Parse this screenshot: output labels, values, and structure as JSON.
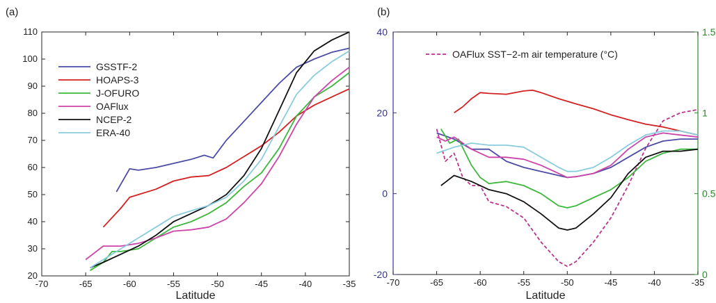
{
  "chart_data": [
    {
      "type": "line",
      "panel_label": "(a)",
      "xlabel": "Latitude",
      "ylabel": "",
      "xlim": [
        -70,
        -35
      ],
      "ylim": [
        20,
        110
      ],
      "xticks": [
        -70,
        -65,
        -60,
        -55,
        -50,
        -45,
        -40,
        -35
      ],
      "yticks": [
        20,
        30,
        40,
        50,
        60,
        70,
        80,
        90,
        100,
        110
      ],
      "legend_position": "top-left",
      "series": [
        {
          "name": "GSSTF-2",
          "color": "#4b4ba6",
          "x": [
            -61.5,
            -60,
            -59,
            -57,
            -55,
            -53,
            -51.5,
            -50.5,
            -49,
            -47,
            -45,
            -43,
            -41,
            -39,
            -37,
            -35
          ],
          "y": [
            51,
            59.5,
            59,
            60,
            61.5,
            63,
            64.5,
            63.5,
            70,
            77,
            84,
            91,
            97,
            100,
            102.5,
            104
          ]
        },
        {
          "name": "HOAPS-3",
          "color": "#d42020",
          "x": [
            -63,
            -61,
            -60,
            -59,
            -57,
            -55,
            -53,
            -51,
            -49,
            -47,
            -45,
            -43,
            -41,
            -39,
            -37,
            -35
          ],
          "y": [
            38,
            45,
            49,
            50,
            52,
            55,
            56.5,
            57,
            60,
            64,
            68,
            73,
            79,
            83,
            86,
            89
          ]
        },
        {
          "name": "J-OFURO",
          "color": "#3cb83c",
          "x": [
            -64.5,
            -63,
            -62,
            -61,
            -59,
            -57,
            -55,
            -53,
            -51,
            -49,
            -47,
            -45,
            -43,
            -41,
            -39,
            -37,
            -35
          ],
          "y": [
            22,
            25,
            29,
            29,
            30,
            34,
            38,
            40,
            43,
            47,
            53,
            58,
            67,
            79,
            86,
            90,
            95
          ]
        },
        {
          "name": "OAFlux",
          "color": "#cc44aa",
          "x": [
            -65,
            -63,
            -61,
            -59,
            -57,
            -55,
            -53,
            -51,
            -49,
            -47,
            -45,
            -43,
            -41,
            -39,
            -37,
            -35
          ],
          "y": [
            26,
            31,
            31,
            32,
            34,
            36.5,
            37,
            38,
            41,
            47,
            54,
            64,
            76,
            86,
            92,
            97
          ]
        },
        {
          "name": "NCEP-2",
          "color": "#111111",
          "x": [
            -64.5,
            -63,
            -61,
            -59,
            -57,
            -55,
            -53,
            -51,
            -49,
            -47,
            -45,
            -43,
            -41,
            -39,
            -37,
            -35
          ],
          "y": [
            23,
            25,
            28,
            31,
            35,
            40,
            43,
            46,
            50,
            57,
            67,
            81,
            95,
            103,
            107,
            110
          ]
        },
        {
          "name": "ERA-40",
          "color": "#88ccdd",
          "x": [
            -64.5,
            -63,
            -61,
            -59,
            -57,
            -55,
            -53,
            -51,
            -49,
            -47,
            -45,
            -43,
            -41,
            -39,
            -37,
            -35
          ],
          "y": [
            23,
            26,
            30,
            34,
            38,
            42,
            44,
            46,
            49,
            55,
            63,
            75,
            87,
            94,
            99,
            103
          ]
        }
      ]
    },
    {
      "type": "line",
      "panel_label": "(b)",
      "xlabel": "Latitude",
      "ylabel": "",
      "xlim": [
        -70,
        -35
      ],
      "ylim": [
        -20,
        40
      ],
      "y2lim": [
        0,
        1.5
      ],
      "xticks": [
        -70,
        -65,
        -60,
        -55,
        -50,
        -45,
        -40,
        -35
      ],
      "yticks": [
        -20,
        0,
        20,
        40
      ],
      "y2ticks": [
        0,
        0.5,
        1,
        1.5
      ],
      "y2ticklabels": [
        "0",
        "0.5",
        "1",
        "1.5"
      ],
      "left_axis_color": "#33338a",
      "right_axis_color": "#2a8a2a",
      "legend_position": "top",
      "series": [
        {
          "name": "OAFlux SST−2-m air temperature (°C)",
          "color": "#b8338a",
          "dashed": true,
          "axis": "right",
          "x": [
            -65,
            -64,
            -63,
            -62,
            -61,
            -60,
            -59,
            -57,
            -55,
            -53,
            -51,
            -50,
            -49,
            -47,
            -45,
            -43,
            -41,
            -39,
            -37,
            -35
          ],
          "y": [
            0.9,
            0.7,
            0.75,
            0.6,
            0.55,
            0.55,
            0.45,
            0.42,
            0.35,
            0.2,
            0.08,
            0.05,
            0.08,
            0.2,
            0.35,
            0.55,
            0.78,
            0.95,
            1.0,
            1.02
          ]
        },
        {
          "name": "HOAPS-3",
          "color": "#d42020",
          "axis": "left",
          "x": [
            -63,
            -62,
            -61,
            -60,
            -59,
            -57,
            -55,
            -54,
            -53,
            -51,
            -49,
            -47,
            -45,
            -43,
            -41,
            -39,
            -37,
            -35
          ],
          "y": [
            20,
            21.5,
            23.5,
            25,
            24.8,
            24.6,
            25.4,
            25.6,
            25,
            23.5,
            22.2,
            21,
            19.5,
            18.3,
            17.2,
            16.5,
            15.5,
            14.5
          ]
        },
        {
          "name": "GSSTF-2",
          "color": "#4b4ba6",
          "axis": "left",
          "x": [
            -65,
            -63,
            -61,
            -59,
            -57,
            -55,
            -53,
            -51,
            -50,
            -49,
            -47,
            -45,
            -43,
            -41,
            -39,
            -37,
            -35
          ],
          "y": [
            15,
            13.5,
            11,
            11,
            8,
            6.5,
            5.5,
            4.5,
            4,
            4.2,
            5,
            6.5,
            9,
            11.5,
            13,
            13.5,
            13.5
          ]
        },
        {
          "name": "J-OFURO",
          "color": "#3cb83c",
          "axis": "left",
          "x": [
            -64.5,
            -63.5,
            -62.5,
            -61,
            -60,
            -59,
            -57,
            -55,
            -53,
            -51,
            -50,
            -49,
            -47,
            -45,
            -43,
            -41,
            -39,
            -37,
            -35
          ],
          "y": [
            16,
            12.5,
            13.5,
            7,
            4,
            2.5,
            3,
            2,
            0,
            -3,
            -3.5,
            -3,
            -1,
            1,
            4,
            8,
            10,
            11,
            11
          ]
        },
        {
          "name": "OAFlux",
          "color": "#cc44aa",
          "axis": "left",
          "x": [
            -65,
            -64,
            -63,
            -61,
            -59,
            -57,
            -55,
            -53,
            -51,
            -50,
            -49,
            -47,
            -45,
            -43,
            -41,
            -39,
            -37,
            -35
          ],
          "y": [
            14,
            13,
            14,
            11,
            9,
            9,
            8.5,
            7,
            5,
            4,
            4.2,
            5,
            7,
            11,
            14,
            15,
            14.5,
            14
          ]
        },
        {
          "name": "NCEP-2",
          "color": "#111111",
          "axis": "left",
          "x": [
            -64.5,
            -63,
            -61,
            -59,
            -57,
            -55,
            -53,
            -51,
            -50,
            -49,
            -47,
            -45,
            -43,
            -41,
            -39,
            -37,
            -35
          ],
          "y": [
            2,
            4.5,
            3,
            1,
            0,
            -2,
            -5,
            -8.5,
            -9,
            -8.5,
            -5,
            -1,
            5,
            9,
            10.5,
            10.5,
            11
          ]
        },
        {
          "name": "ERA-40",
          "color": "#88ccdd",
          "axis": "left",
          "x": [
            -65,
            -63,
            -61,
            -59,
            -57,
            -55,
            -53,
            -51,
            -50,
            -49,
            -47,
            -45,
            -43,
            -41,
            -39,
            -37,
            -35
          ],
          "y": [
            10,
            11.5,
            12.5,
            12,
            12,
            11.5,
            9,
            6.5,
            5.5,
            5.5,
            6.5,
            9,
            12,
            14.5,
            15.5,
            15.5,
            14.5
          ]
        }
      ]
    }
  ]
}
